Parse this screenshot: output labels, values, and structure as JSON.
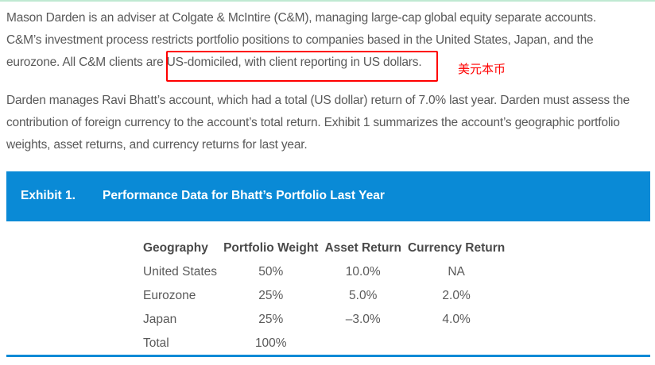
{
  "paragraphs": {
    "p1_line1": "Mason Darden is an adviser at Colgate & McIntire (C&M), managing large-cap global equity separate accounts.",
    "p1_line2": "C&M’s investment process restricts portfolio positions to companies based in the United States, Japan, and the",
    "p1_line3_before": "eurozone. All C&M clients are ",
    "p1_line3_highlight": "US-domiciled, with client reporting in US dollars.",
    "annotation": "美元本币",
    "p2_line1": "Darden manages Ravi Bhatt’s account, which had a total (US dollar) return of 7.0% last year. Darden must assess the",
    "p2_line2": "contribution of foreign currency to the account’s total return. Exhibit 1 summarizes the account’s geographic portfolio",
    "p2_line3": "weights, asset returns, and currency returns for last year."
  },
  "exhibit": {
    "label": "Exhibit 1.",
    "title": "Performance Data for Bhatt’s Portfolio Last Year",
    "headers": [
      "Geography",
      "Portfolio Weight",
      "Asset Return",
      "Currency Return"
    ],
    "rows": [
      [
        "United States",
        "50%",
        "10.0%",
        "NA"
      ],
      [
        "Eurozone",
        "25%",
        "5.0%",
        "2.0%"
      ],
      [
        "Japan",
        "25%",
        "–3.0%",
        "4.0%"
      ],
      [
        "Total",
        "100%",
        "",
        ""
      ]
    ]
  },
  "colors": {
    "band": "#0a8ad6",
    "highlight_box": "#ff0000",
    "annotation": "#ff0000"
  }
}
